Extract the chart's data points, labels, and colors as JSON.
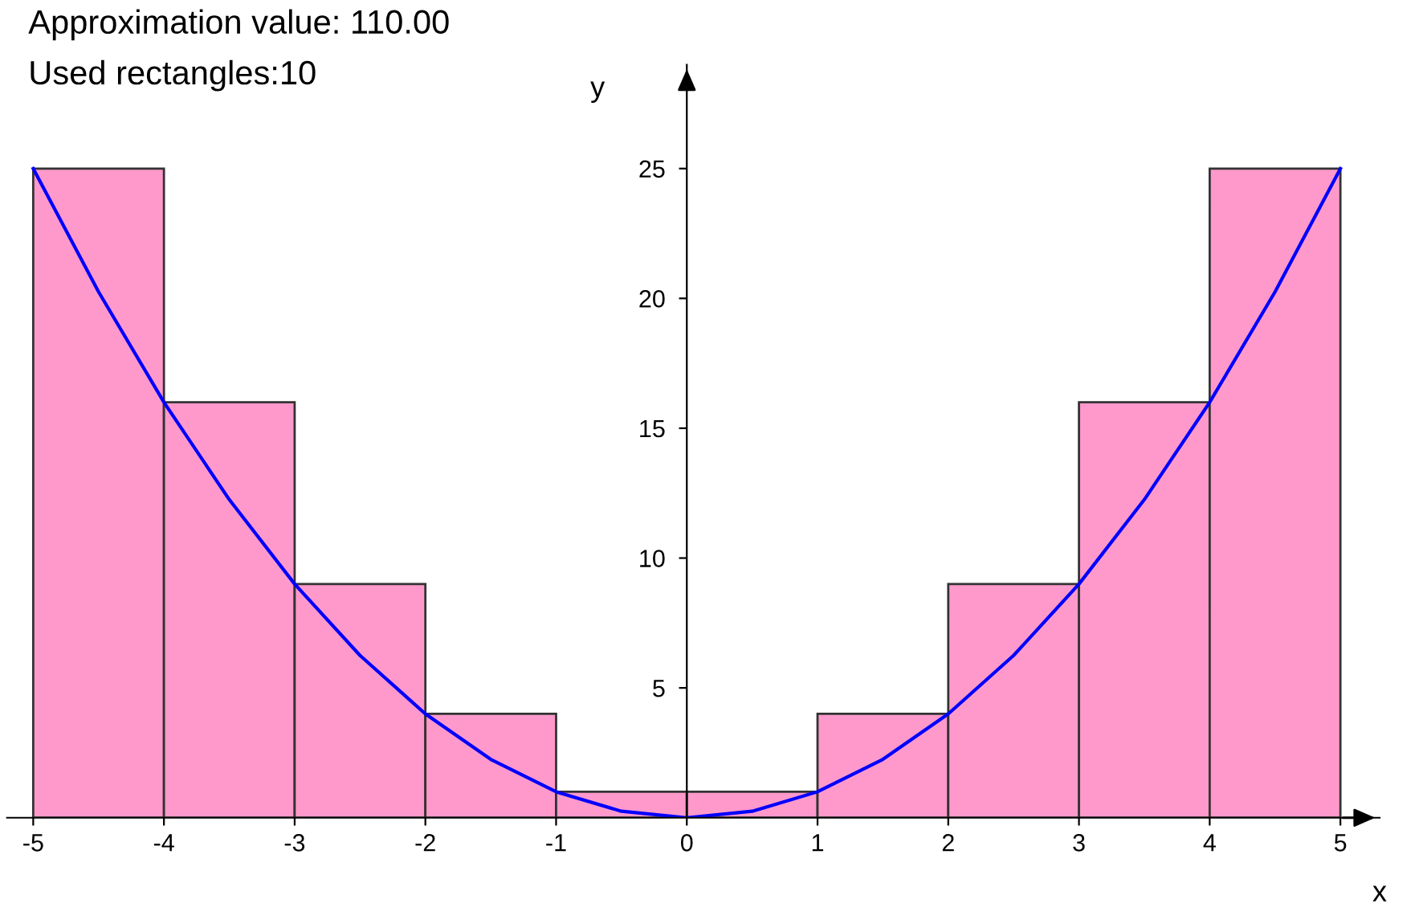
{
  "chart_data": {
    "type": "histogram",
    "title": "Approximation value: 110.00",
    "subtitle": "Used rectangles:10",
    "xlabel": "x",
    "ylabel": "y",
    "series": [
      {
        "bins": [
          -5,
          -4,
          -3,
          -2,
          -1,
          0,
          1,
          2,
          3,
          4,
          5
        ],
        "values": [
          25,
          16,
          9,
          4,
          1,
          1,
          4,
          9,
          16,
          25
        ],
        "color": "#ff99cc"
      },
      {
        "type": "line",
        "color": "#0000ff",
        "x": [
          -5,
          -4.5,
          -4,
          -3.5,
          -3,
          -2.5,
          -2,
          -1.5,
          -1,
          -0.5,
          0,
          0.5,
          1,
          1.5,
          2,
          2.5,
          3,
          3.5,
          4,
          4.5,
          5
        ],
        "values": [
          25,
          20.25,
          16,
          12.25,
          9,
          6.25,
          4,
          2.25,
          1,
          0.25,
          0,
          0.25,
          1,
          2.25,
          4,
          6.25,
          9,
          12.25,
          16,
          20.25,
          25
        ]
      }
    ],
    "xlim": [
      -5.2,
      5.3
    ],
    "ylim": [
      0,
      29
    ],
    "xticks": [
      -5,
      -4,
      -3,
      -2,
      -1,
      0,
      1,
      2,
      3,
      4,
      5
    ],
    "yticks": [
      5,
      10,
      15,
      20,
      25
    ],
    "grid": false,
    "legend": false
  }
}
